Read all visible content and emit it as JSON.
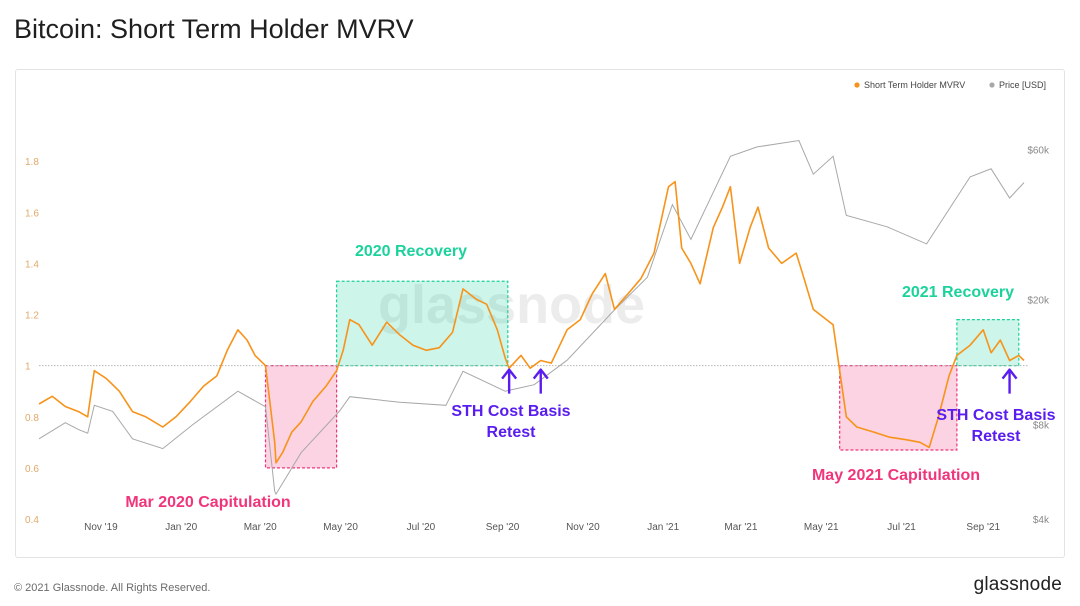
{
  "title": "Bitcoin: Short Term Holder MVRV",
  "footer": {
    "copyright": "© 2021 Glassnode. All Rights Reserved.",
    "logo": "glassnode"
  },
  "watermark": "glassnode",
  "colors": {
    "mvrv": "#f7931a",
    "price": "#a8a8a8",
    "recovery": "#1bd39a",
    "capitulation": "#f0357b",
    "arrow": "#5a1df0",
    "axis_text": "#e0a96a",
    "axis_text_right": "#888888",
    "baseline": "#b8b8b8"
  },
  "chart_data": {
    "type": "line",
    "legend": {
      "position": "top-right",
      "items": [
        "Short Term Holder MVRV",
        "Price [USD]"
      ]
    },
    "x_ticks": [
      "Nov '19",
      "Jan '20",
      "Mar '20",
      "May '20",
      "Jul '20",
      "Sep '20",
      "Nov '20",
      "Jan '21",
      "Mar '21",
      "May '21",
      "Jul '21",
      "Sep '21"
    ],
    "x_range": [
      "2019-09-15",
      "2021-10-05"
    ],
    "y_left": {
      "ticks": [
        "0.4",
        "0.6",
        "0.8",
        "1",
        "1.2",
        "1.4",
        "1.6",
        "1.8"
      ],
      "range": [
        0.4,
        2.0
      ]
    },
    "y_right": {
      "ticks": [
        "$4k",
        "$8k",
        "$20k",
        "$60k"
      ],
      "scale": "log",
      "range": [
        4000,
        80000
      ]
    },
    "grid": false,
    "reference_line": 1,
    "series": [
      {
        "name": "Short Term Holder MVRV",
        "axis": "left",
        "points": [
          [
            "2019-09-15",
            0.85
          ],
          [
            "2019-09-25",
            0.88
          ],
          [
            "2019-10-05",
            0.84
          ],
          [
            "2019-10-15",
            0.82
          ],
          [
            "2019-10-22",
            0.8
          ],
          [
            "2019-10-27",
            0.98
          ],
          [
            "2019-11-05",
            0.95
          ],
          [
            "2019-11-15",
            0.9
          ],
          [
            "2019-11-25",
            0.82
          ],
          [
            "2019-12-05",
            0.8
          ],
          [
            "2019-12-18",
            0.76
          ],
          [
            "2019-12-28",
            0.8
          ],
          [
            "2020-01-08",
            0.86
          ],
          [
            "2020-01-18",
            0.92
          ],
          [
            "2020-01-28",
            0.96
          ],
          [
            "2020-02-05",
            1.06
          ],
          [
            "2020-02-13",
            1.14
          ],
          [
            "2020-02-20",
            1.1
          ],
          [
            "2020-02-26",
            1.04
          ],
          [
            "2020-03-05",
            1.0
          ],
          [
            "2020-03-12",
            0.7
          ],
          [
            "2020-03-13",
            0.62
          ],
          [
            "2020-03-18",
            0.66
          ],
          [
            "2020-03-25",
            0.74
          ],
          [
            "2020-04-01",
            0.78
          ],
          [
            "2020-04-10",
            0.86
          ],
          [
            "2020-04-20",
            0.92
          ],
          [
            "2020-04-28",
            0.98
          ],
          [
            "2020-05-03",
            1.06
          ],
          [
            "2020-05-08",
            1.18
          ],
          [
            "2020-05-15",
            1.16
          ],
          [
            "2020-05-25",
            1.08
          ],
          [
            "2020-06-05",
            1.17
          ],
          [
            "2020-06-15",
            1.12
          ],
          [
            "2020-06-25",
            1.08
          ],
          [
            "2020-07-05",
            1.06
          ],
          [
            "2020-07-15",
            1.07
          ],
          [
            "2020-07-25",
            1.13
          ],
          [
            "2020-08-02",
            1.3
          ],
          [
            "2020-08-12",
            1.26
          ],
          [
            "2020-08-20",
            1.24
          ],
          [
            "2020-08-28",
            1.14
          ],
          [
            "2020-09-03",
            1.03
          ],
          [
            "2020-09-06",
            0.99
          ],
          [
            "2020-09-15",
            1.04
          ],
          [
            "2020-09-22",
            0.99
          ],
          [
            "2020-09-30",
            1.02
          ],
          [
            "2020-10-08",
            1.01
          ],
          [
            "2020-10-20",
            1.14
          ],
          [
            "2020-10-30",
            1.18
          ],
          [
            "2020-11-08",
            1.28
          ],
          [
            "2020-11-18",
            1.36
          ],
          [
            "2020-11-25",
            1.22
          ],
          [
            "2020-12-05",
            1.28
          ],
          [
            "2020-12-15",
            1.34
          ],
          [
            "2020-12-25",
            1.44
          ],
          [
            "2021-01-05",
            1.7
          ],
          [
            "2021-01-10",
            1.72
          ],
          [
            "2021-01-15",
            1.46
          ],
          [
            "2021-01-22",
            1.4
          ],
          [
            "2021-01-29",
            1.32
          ],
          [
            "2021-02-08",
            1.54
          ],
          [
            "2021-02-15",
            1.62
          ],
          [
            "2021-02-21",
            1.7
          ],
          [
            "2021-02-28",
            1.4
          ],
          [
            "2021-03-08",
            1.54
          ],
          [
            "2021-03-14",
            1.62
          ],
          [
            "2021-03-22",
            1.46
          ],
          [
            "2021-04-01",
            1.4
          ],
          [
            "2021-04-12",
            1.44
          ],
          [
            "2021-04-18",
            1.34
          ],
          [
            "2021-04-25",
            1.22
          ],
          [
            "2021-05-05",
            1.18
          ],
          [
            "2021-05-10",
            1.16
          ],
          [
            "2021-05-15",
            0.98
          ],
          [
            "2021-05-20",
            0.8
          ],
          [
            "2021-05-28",
            0.76
          ],
          [
            "2021-06-10",
            0.74
          ],
          [
            "2021-06-22",
            0.72
          ],
          [
            "2021-07-05",
            0.71
          ],
          [
            "2021-07-15",
            0.7
          ],
          [
            "2021-07-22",
            0.68
          ],
          [
            "2021-07-29",
            0.8
          ],
          [
            "2021-08-06",
            0.96
          ],
          [
            "2021-08-12",
            1.04
          ],
          [
            "2021-08-22",
            1.08
          ],
          [
            "2021-09-01",
            1.14
          ],
          [
            "2021-09-07",
            1.05
          ],
          [
            "2021-09-14",
            1.1
          ],
          [
            "2021-09-21",
            1.02
          ],
          [
            "2021-09-28",
            1.04
          ],
          [
            "2021-10-02",
            1.02
          ]
        ]
      },
      {
        "name": "Price [USD]",
        "axis": "right",
        "points": [
          [
            "2019-09-15",
            7200
          ],
          [
            "2019-10-05",
            8100
          ],
          [
            "2019-10-15",
            7700
          ],
          [
            "2019-10-22",
            7500
          ],
          [
            "2019-10-27",
            9200
          ],
          [
            "2019-11-10",
            8800
          ],
          [
            "2019-11-25",
            7200
          ],
          [
            "2019-12-18",
            6700
          ],
          [
            "2020-01-10",
            8000
          ],
          [
            "2020-02-13",
            10200
          ],
          [
            "2020-03-05",
            9100
          ],
          [
            "2020-03-12",
            4900
          ],
          [
            "2020-03-13",
            4800
          ],
          [
            "2020-04-01",
            6500
          ],
          [
            "2020-04-30",
            8800
          ],
          [
            "2020-05-08",
            9800
          ],
          [
            "2020-06-15",
            9400
          ],
          [
            "2020-07-20",
            9200
          ],
          [
            "2020-08-02",
            11800
          ],
          [
            "2020-09-03",
            10200
          ],
          [
            "2020-09-25",
            10700
          ],
          [
            "2020-10-20",
            12800
          ],
          [
            "2020-11-25",
            18500
          ],
          [
            "2020-12-20",
            23500
          ],
          [
            "2021-01-08",
            40000
          ],
          [
            "2021-01-22",
            31000
          ],
          [
            "2021-02-21",
            57000
          ],
          [
            "2021-03-13",
            61000
          ],
          [
            "2021-04-14",
            64000
          ],
          [
            "2021-04-25",
            50000
          ],
          [
            "2021-05-10",
            57000
          ],
          [
            "2021-05-20",
            37000
          ],
          [
            "2021-06-20",
            34000
          ],
          [
            "2021-07-20",
            30000
          ],
          [
            "2021-08-22",
            49000
          ],
          [
            "2021-09-07",
            52000
          ],
          [
            "2021-09-21",
            42000
          ],
          [
            "2021-10-02",
            47000
          ]
        ]
      }
    ],
    "annotations": [
      {
        "label": "Mar 2020 Capitulation",
        "type": "capitulation",
        "x": [
          "2020-03-05",
          "2020-04-28"
        ],
        "y": [
          0.6,
          1.0
        ]
      },
      {
        "label": "2020 Recovery",
        "type": "recovery",
        "x": [
          "2020-04-28",
          "2020-09-05"
        ],
        "y": [
          1.0,
          1.33
        ]
      },
      {
        "label": "May 2021 Capitulation",
        "type": "capitulation",
        "x": [
          "2021-05-15",
          "2021-08-12"
        ],
        "y": [
          0.67,
          1.0
        ]
      },
      {
        "label": "2021 Recovery",
        "type": "recovery",
        "x": [
          "2021-08-12",
          "2021-09-28"
        ],
        "y": [
          1.0,
          1.18
        ]
      },
      {
        "label": "STH Cost Basis\nRetest",
        "type": "retest",
        "arrows_at": [
          "2020-09-06",
          "2020-09-30"
        ]
      },
      {
        "label": "STH Cost Basis\nRetest",
        "type": "retest",
        "arrows_at": [
          "2021-09-21"
        ]
      }
    ]
  }
}
